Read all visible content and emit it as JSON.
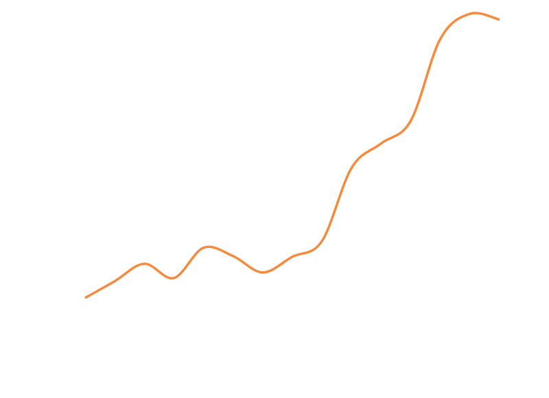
{
  "chart_data": {
    "type": "line",
    "title": "",
    "xlabel": "",
    "ylabel": "",
    "grid": false,
    "x": [
      0,
      1,
      2,
      3,
      4,
      5,
      6,
      7,
      8,
      9,
      10,
      11,
      12,
      13,
      14
    ],
    "ylim": [
      0,
      10
    ],
    "series": [
      {
        "color": "#f58a3c",
        "values": [
          1.77,
          2.25,
          2.75,
          2.34,
          3.21,
          2.97,
          2.5,
          2.95,
          3.4,
          5.5,
          6.2,
          6.85,
          9.2,
          9.92,
          9.75
        ]
      }
    ]
  }
}
